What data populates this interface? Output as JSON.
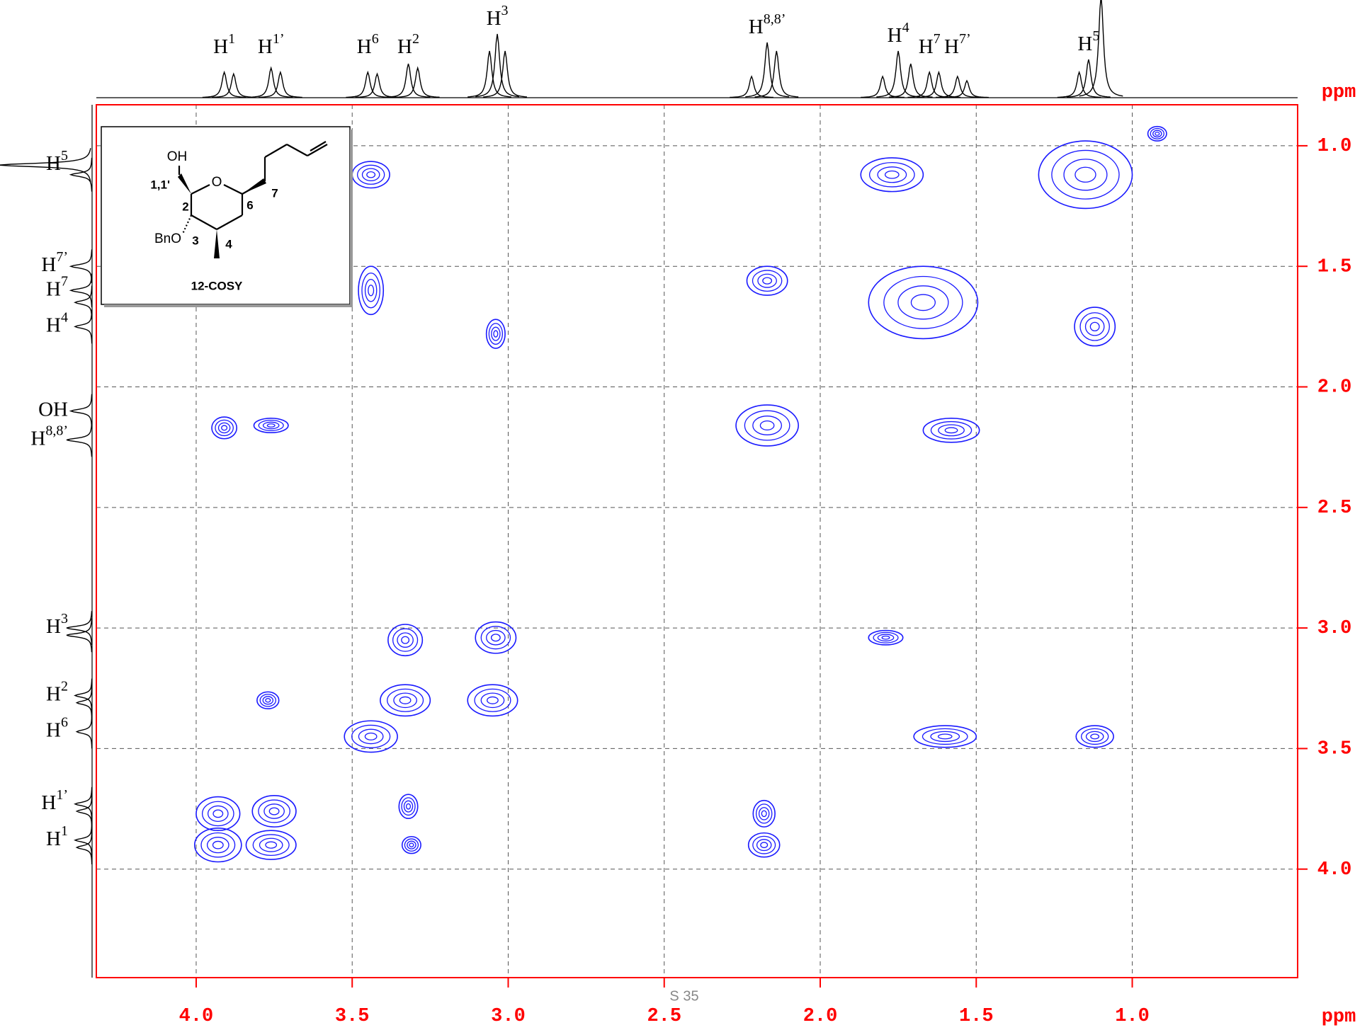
{
  "chart_data": {
    "type": "contour",
    "x_label": "ppm",
    "y_label": "ppm",
    "xlim": [
      4.32,
      0.47
    ],
    "ylim": [
      0.83,
      4.45
    ],
    "xticks": [
      {
        "value": 4,
        "label": "4.0"
      },
      {
        "value": 3.5,
        "label": "3.5"
      },
      {
        "value": 3,
        "label": "3.0"
      },
      {
        "value": 2.5,
        "label": "2.5"
      },
      {
        "value": 2,
        "label": "2.0"
      },
      {
        "value": 1.5,
        "label": "1.5"
      },
      {
        "value": 1,
        "label": "1.0"
      }
    ],
    "yticks": [
      {
        "value": 1,
        "label": "1.0"
      },
      {
        "value": 1.5,
        "label": "1.5"
      },
      {
        "value": 2,
        "label": "2.0"
      },
      {
        "value": 2.5,
        "label": "2.5"
      },
      {
        "value": 3,
        "label": "3.0"
      },
      {
        "value": 3.5,
        "label": "3.5"
      },
      {
        "value": 4,
        "label": "4.0"
      }
    ],
    "grid": true,
    "color": "#1a1aff",
    "axis_color": "#ff0000",
    "cross_peaks": {
      "x": [
        3.44,
        3.44,
        3.04,
        3.91,
        3.76,
        2.17,
        2.17,
        1.77,
        1.67,
        1.12,
        1.15,
        0.92,
        1.58,
        3.33,
        3.04,
        1.79,
        3.77,
        3.33,
        3.05,
        3.44,
        1.6,
        1.12,
        3.93,
        3.75,
        3.93,
        3.76,
        3.32,
        3.31,
        2.18,
        2.18
      ],
      "y": [
        1.12,
        1.6,
        1.78,
        2.17,
        2.16,
        1.56,
        2.16,
        1.12,
        1.65,
        1.75,
        1.12,
        0.95,
        2.18,
        3.05,
        3.04,
        3.04,
        3.3,
        3.3,
        3.3,
        3.45,
        3.45,
        3.45,
        3.77,
        3.76,
        3.9,
        3.9,
        3.74,
        3.9,
        3.77,
        3.9
      ],
      "dx": [
        0.12,
        0.08,
        0.06,
        0.08,
        0.11,
        0.13,
        0.2,
        0.2,
        0.35,
        0.13,
        0.3,
        0.06,
        0.18,
        0.11,
        0.13,
        0.11,
        0.07,
        0.16,
        0.16,
        0.17,
        0.2,
        0.12,
        0.14,
        0.14,
        0.15,
        0.16,
        0.06,
        0.06,
        0.07,
        0.1
      ],
      "dy": [
        0.11,
        0.2,
        0.12,
        0.09,
        0.06,
        0.12,
        0.17,
        0.14,
        0.3,
        0.16,
        0.28,
        0.06,
        0.1,
        0.13,
        0.13,
        0.06,
        0.07,
        0.13,
        0.13,
        0.13,
        0.09,
        0.09,
        0.14,
        0.13,
        0.14,
        0.12,
        0.1,
        0.07,
        0.11,
        0.1
      ]
    },
    "top_projection": {
      "ppm": [
        3.91,
        3.88,
        3.76,
        3.73,
        3.45,
        3.42,
        3.32,
        3.29,
        3.06,
        3.035,
        3.01,
        2.22,
        2.17,
        2.14,
        1.8,
        1.75,
        1.71,
        1.65,
        1.62,
        1.56,
        1.53,
        1.17,
        1.14,
        1.1
      ],
      "height": [
        30,
        28,
        35,
        30,
        30,
        28,
        40,
        35,
        55,
        75,
        55,
        25,
        65,
        55,
        25,
        55,
        40,
        30,
        30,
        25,
        20,
        30,
        45,
        120
      ],
      "labels": [
        {
          "base": "H",
          "sup": "1"
        },
        null,
        {
          "base": "H",
          "sup": "1’"
        },
        null,
        {
          "base": "H",
          "sup": "6"
        },
        null,
        {
          "base": "H",
          "sup": "2"
        },
        null,
        null,
        {
          "base": "H",
          "sup": "3"
        },
        null,
        null,
        {
          "base": "H",
          "sup": "8,8’"
        },
        null,
        null,
        {
          "base": "H",
          "sup": "4"
        },
        null,
        {
          "base": "H",
          "sup": "7"
        },
        null,
        {
          "base": "H",
          "sup": "7’"
        },
        null,
        null,
        {
          "base": "H",
          "sup": "5"
        },
        null
      ]
    },
    "left_projection": {
      "ppm": [
        1.08,
        1.12,
        1.5,
        1.6,
        1.65,
        1.75,
        2.1,
        2.22,
        3.0,
        3.03,
        3.28,
        3.31,
        3.43,
        3.73,
        3.76,
        3.88,
        3.91
      ],
      "height": [
        110,
        25,
        25,
        25,
        20,
        20,
        25,
        30,
        30,
        30,
        20,
        18,
        18,
        20,
        18,
        20,
        18
      ],
      "labels": [
        {
          "base": "H",
          "sup": "5"
        },
        null,
        {
          "base": "H",
          "sup": "7’"
        },
        {
          "base": "H",
          "sup": "7"
        },
        null,
        {
          "base": "H",
          "sup": "4"
        },
        {
          "base": "OH"
        },
        {
          "base": "H",
          "sup": "8,8’"
        },
        {
          "base": "H",
          "sup": "3"
        },
        null,
        {
          "base": "H",
          "sup": "2"
        },
        null,
        {
          "base": "H",
          "sup": "6"
        },
        {
          "base": "H",
          "sup": "1’"
        },
        null,
        {
          "base": "H",
          "sup": "1"
        },
        null
      ]
    }
  },
  "inset": {
    "labels": {
      "oh": "OH",
      "c1": "1,1'",
      "c2": "2",
      "o": "O",
      "c6": "6",
      "c7": "7",
      "bno": "BnO",
      "c3": "3",
      "c4": "4"
    },
    "title": "12-COSY"
  },
  "footer": "S 35"
}
